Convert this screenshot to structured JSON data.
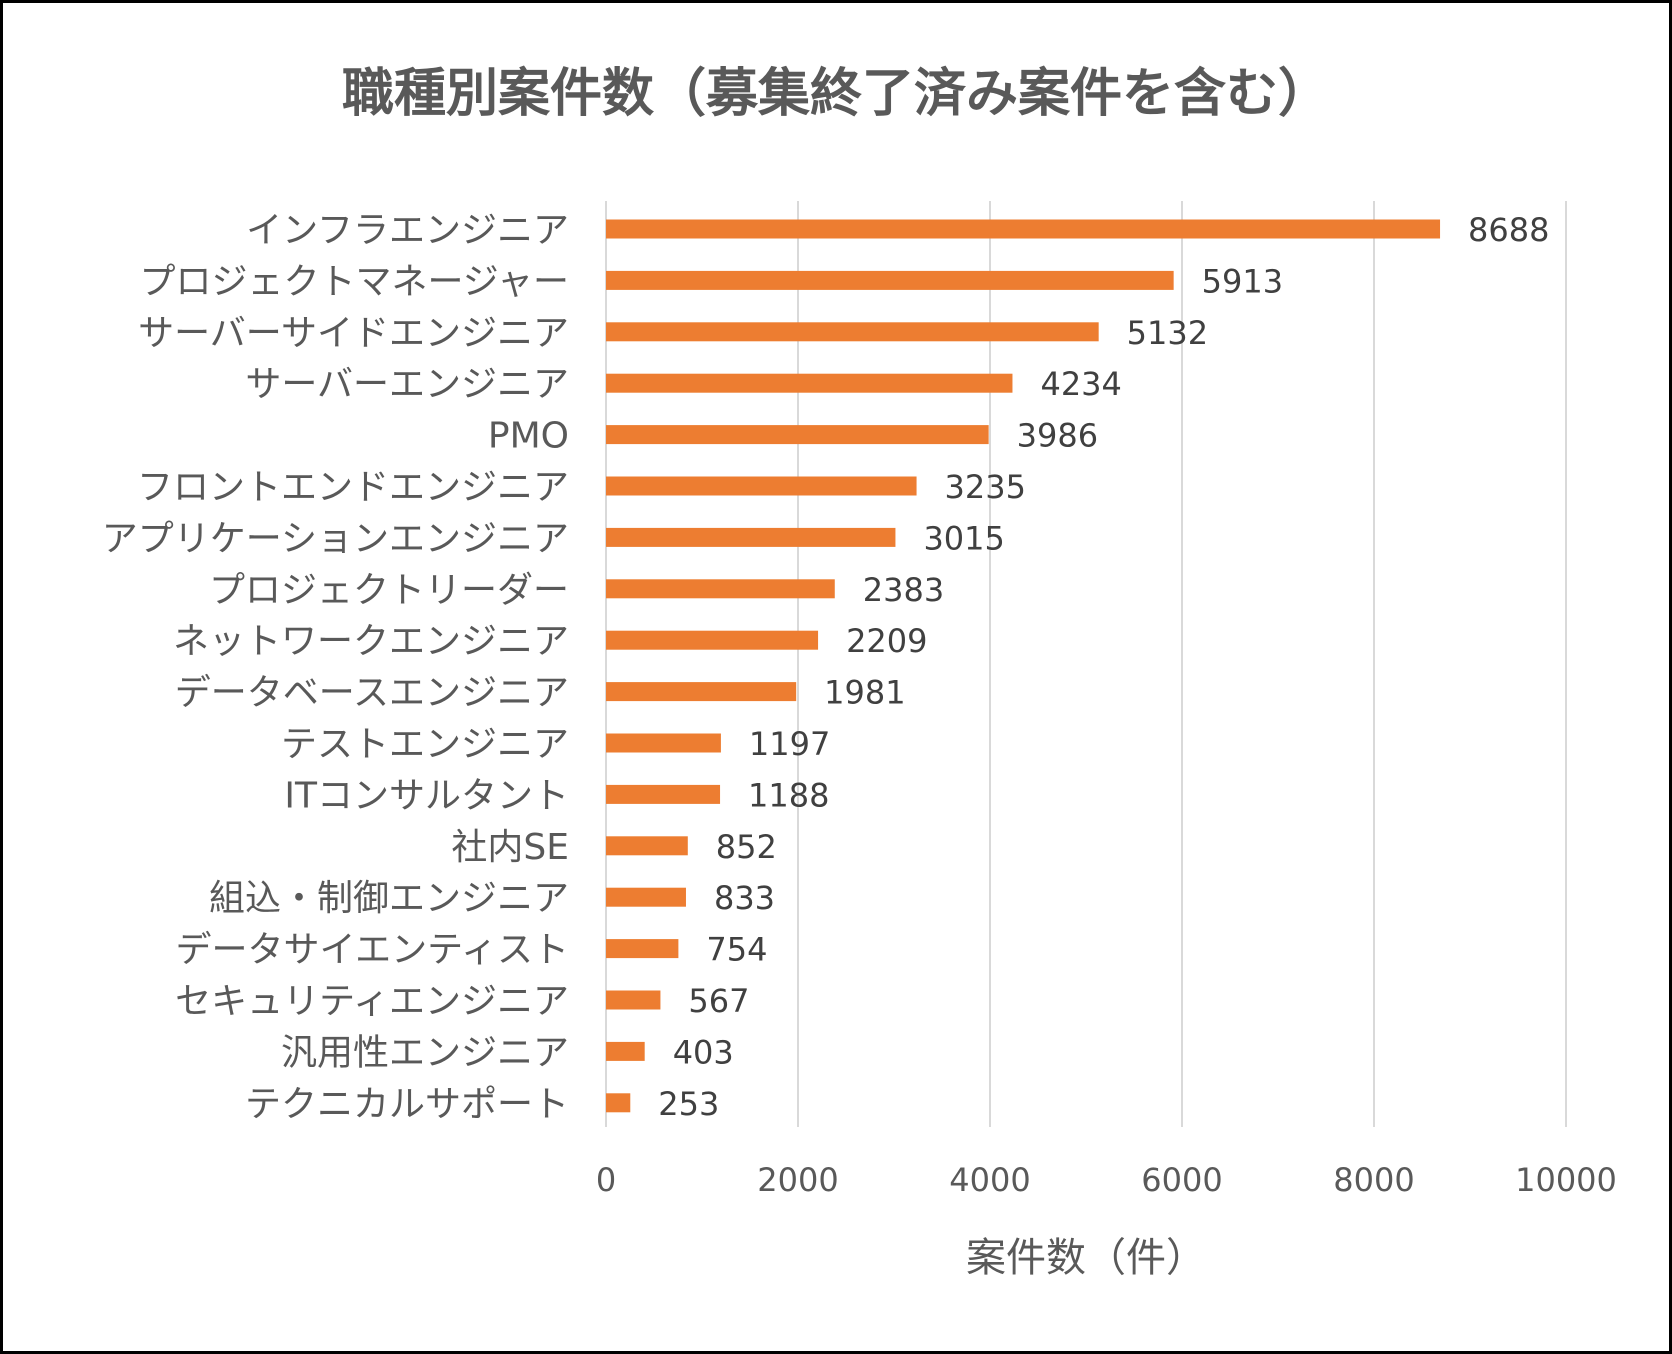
{
  "chart_data": {
    "type": "bar",
    "orientation": "horizontal",
    "title": "職種別案件数（募集終了済み案件を含む）",
    "xlabel": "案件数（件）",
    "ylabel": "",
    "xlim": [
      0,
      10000
    ],
    "x_ticks": [
      "0",
      "2000",
      "4000",
      "6000",
      "8000",
      "10000"
    ],
    "x_tick_values": [
      0,
      2000,
      4000,
      6000,
      8000,
      10000
    ],
    "grid": true,
    "legend": "none",
    "bar_color": "#ED7D31",
    "categories": [
      "インフラエンジニア",
      "プロジェクトマネージャー",
      "サーバーサイドエンジニア",
      "サーバーエンジニア",
      "PMO",
      "フロントエンドエンジニア",
      "アプリケーションエンジニア",
      "プロジェクトリーダー",
      "ネットワークエンジニア",
      "データベースエンジニア",
      "テストエンジニア",
      "ITコンサルタント",
      "社内SE",
      "組込・制御エンジニア",
      "データサイエンティスト",
      "セキュリティエンジニア",
      "汎用性エンジニア",
      "テクニカルサポート"
    ],
    "values": [
      8688,
      5913,
      5132,
      4234,
      3986,
      3235,
      3015,
      2383,
      2209,
      1981,
      1197,
      1188,
      852,
      833,
      754,
      567,
      403,
      253
    ],
    "data_labels": [
      "8688",
      "5913",
      "5132",
      "4234",
      "3986",
      "3235",
      "3015",
      "2383",
      "2209",
      "1981",
      "1197",
      "1188",
      "852",
      "833",
      "754",
      "567",
      "403",
      "253"
    ]
  }
}
